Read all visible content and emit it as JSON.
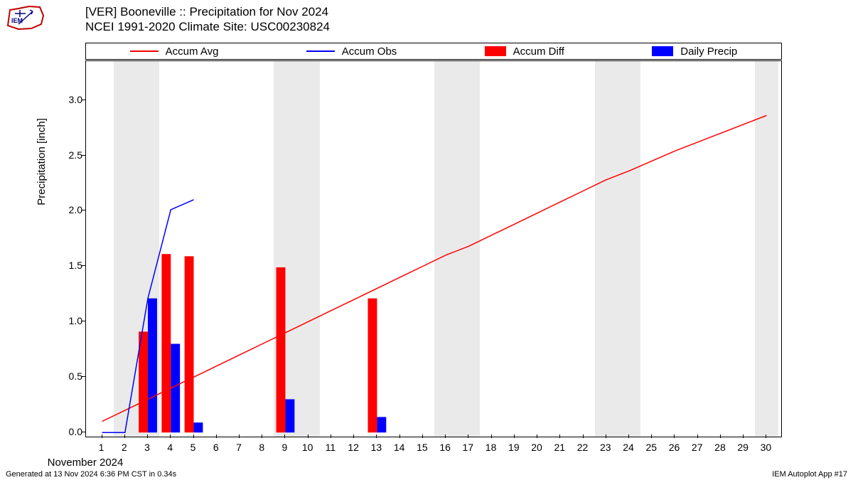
{
  "title_line1": "[VER] Booneville :: Precipitation for Nov 2024",
  "title_line2": "NCEI 1991-2020 Climate Site: USC00230824",
  "ylabel": "Precipitation [inch]",
  "xlabel": "November 2024",
  "footer_left": "Generated at 13 Nov 2024 6:36 PM CST in 0.34s",
  "footer_right": "IEM Autoplot App #17",
  "legend": {
    "accum_avg": "Accum Avg",
    "accum_obs": "Accum Obs",
    "accum_diff": "Accum Diff",
    "daily_precip": "Daily Precip"
  },
  "chart": {
    "type": "line+bar",
    "background_color": "#ffffff",
    "weekend_color": "#eaeaea",
    "accum_avg_color": "#ff0000",
    "accum_obs_color": "#0000ff",
    "accum_diff_color": "#ff0000",
    "daily_precip_color": "#0000ff",
    "yticks": [
      0.0,
      0.5,
      1.0,
      1.5,
      2.0,
      2.5,
      3.0
    ],
    "ylim": [
      -0.05,
      3.35
    ],
    "xticks": [
      1,
      2,
      3,
      4,
      5,
      6,
      7,
      8,
      9,
      10,
      11,
      12,
      13,
      14,
      15,
      16,
      17,
      18,
      19,
      20,
      21,
      22,
      23,
      24,
      25,
      26,
      27,
      28,
      29,
      30
    ],
    "xlim": [
      0.3,
      30.7
    ],
    "weekend_days": [
      2,
      3,
      9,
      10,
      16,
      17,
      23,
      24,
      30
    ],
    "bar_width_days": 0.4,
    "accum_avg": [
      [
        1,
        0.1
      ],
      [
        2,
        0.2
      ],
      [
        3,
        0.3
      ],
      [
        4,
        0.4
      ],
      [
        5,
        0.5
      ],
      [
        6,
        0.6
      ],
      [
        7,
        0.7
      ],
      [
        8,
        0.8
      ],
      [
        9,
        0.9
      ],
      [
        10,
        1.0
      ],
      [
        11,
        1.1
      ],
      [
        12,
        1.2
      ],
      [
        13,
        1.3
      ],
      [
        14,
        1.4
      ],
      [
        15,
        1.5
      ],
      [
        16,
        1.6
      ],
      [
        17,
        1.68
      ],
      [
        18,
        1.78
      ],
      [
        19,
        1.88
      ],
      [
        20,
        1.98
      ],
      [
        21,
        2.08
      ],
      [
        22,
        2.18
      ],
      [
        23,
        2.28
      ],
      [
        24,
        2.36
      ],
      [
        25,
        2.45
      ],
      [
        26,
        2.54
      ],
      [
        27,
        2.62
      ],
      [
        28,
        2.7
      ],
      [
        29,
        2.78
      ],
      [
        30,
        2.86
      ]
    ],
    "accum_obs": [
      [
        1,
        0.0
      ],
      [
        2,
        0.0
      ],
      [
        3,
        1.21
      ],
      [
        4,
        2.01
      ],
      [
        5,
        2.1
      ]
    ],
    "accum_diff_bars": [
      {
        "day": 3,
        "value": 0.91
      },
      {
        "day": 4,
        "value": 1.61
      },
      {
        "day": 5,
        "value": 1.59
      },
      {
        "day": 9,
        "value": 1.49
      },
      {
        "day": 13,
        "value": 1.21
      }
    ],
    "daily_precip_bars": [
      {
        "day": 3,
        "value": 1.21
      },
      {
        "day": 4,
        "value": 0.8
      },
      {
        "day": 5,
        "value": 0.09
      },
      {
        "day": 9,
        "value": 0.3
      },
      {
        "day": 13,
        "value": 0.14
      }
    ]
  }
}
